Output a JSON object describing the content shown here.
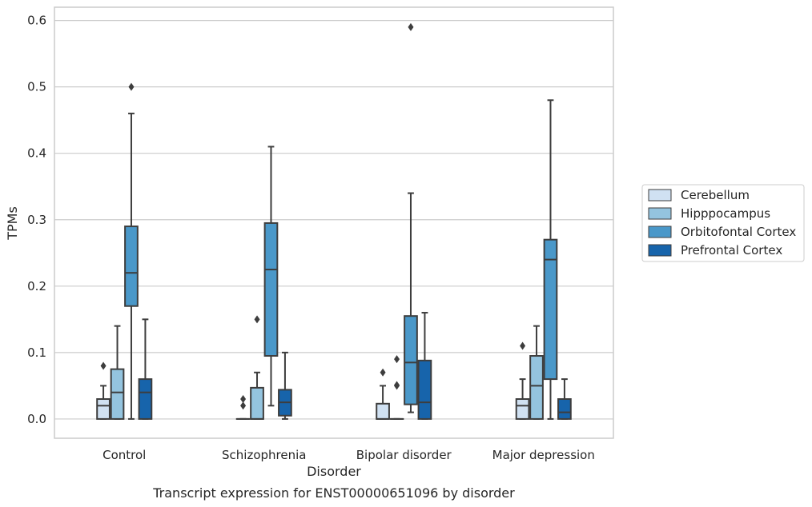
{
  "chart_data": {
    "type": "box",
    "xlabel": "Disorder",
    "ylabel": "TPMs",
    "caption": "Transcript expression for ENST00000651096 by disorder",
    "ylim": [
      -0.029,
      0.62
    ],
    "yticks": [
      "0.0",
      "0.1",
      "0.2",
      "0.3",
      "0.4",
      "0.5",
      "0.6"
    ],
    "grid": "horizontal",
    "legend_position": "right",
    "categories": [
      "Control",
      "Schizophrenia",
      "Bipolar disorder",
      "Major depression"
    ],
    "series": [
      {
        "name": "Cerebellum",
        "color": "#d0e1f2",
        "boxes": [
          {
            "whisker_low": 0.0,
            "q1": 0.0,
            "median": 0.02,
            "q3": 0.03,
            "whisker_high": 0.05,
            "outliers": [
              0.08
            ]
          },
          {
            "whisker_low": 0.0,
            "q1": 0.0,
            "median": 0.0,
            "q3": 0.0,
            "whisker_high": 0.0,
            "outliers": [
              0.02,
              0.03
            ]
          },
          {
            "whisker_low": 0.0,
            "q1": 0.0,
            "median": 0.0,
            "q3": 0.023,
            "whisker_high": 0.05,
            "outliers": [
              0.07
            ]
          },
          {
            "whisker_low": 0.0,
            "q1": 0.0,
            "median": 0.02,
            "q3": 0.03,
            "whisker_high": 0.06,
            "outliers": [
              0.11
            ]
          }
        ]
      },
      {
        "name": "Hipppocampus",
        "color": "#94c4df",
        "boxes": [
          {
            "whisker_low": 0.0,
            "q1": 0.0,
            "median": 0.04,
            "q3": 0.075,
            "whisker_high": 0.14,
            "outliers": []
          },
          {
            "whisker_low": 0.0,
            "q1": 0.0,
            "median": 0.0,
            "q3": 0.047,
            "whisker_high": 0.07,
            "outliers": [
              0.15
            ]
          },
          {
            "whisker_low": 0.0,
            "q1": 0.0,
            "median": 0.0,
            "q3": 0.0,
            "whisker_high": 0.0,
            "outliers": [
              0.05,
              0.051,
              0.09
            ]
          },
          {
            "whisker_low": 0.0,
            "q1": 0.0,
            "median": 0.05,
            "q3": 0.095,
            "whisker_high": 0.14,
            "outliers": []
          }
        ]
      },
      {
        "name": "Orbitofontal Cortex",
        "color": "#4a98c9",
        "boxes": [
          {
            "whisker_low": 0.0,
            "q1": 0.17,
            "median": 0.22,
            "q3": 0.29,
            "whisker_high": 0.46,
            "outliers": [
              0.5
            ]
          },
          {
            "whisker_low": 0.02,
            "q1": 0.095,
            "median": 0.225,
            "q3": 0.295,
            "whisker_high": 0.41,
            "outliers": []
          },
          {
            "whisker_low": 0.01,
            "q1": 0.022,
            "median": 0.085,
            "q3": 0.155,
            "whisker_high": 0.34,
            "outliers": [
              0.59
            ]
          },
          {
            "whisker_low": 0.0,
            "q1": 0.06,
            "median": 0.24,
            "q3": 0.27,
            "whisker_high": 0.48,
            "outliers": []
          }
        ]
      },
      {
        "name": "Prefrontal Cortex",
        "color": "#1764ab",
        "boxes": [
          {
            "whisker_low": 0.0,
            "q1": 0.0,
            "median": 0.04,
            "q3": 0.06,
            "whisker_high": 0.15,
            "outliers": []
          },
          {
            "whisker_low": 0.0,
            "q1": 0.005,
            "median": 0.025,
            "q3": 0.044,
            "whisker_high": 0.1,
            "outliers": []
          },
          {
            "whisker_low": 0.0,
            "q1": 0.0,
            "median": 0.025,
            "q3": 0.088,
            "whisker_high": 0.16,
            "outliers": []
          },
          {
            "whisker_low": 0.0,
            "q1": 0.0,
            "median": 0.01,
            "q3": 0.03,
            "whisker_high": 0.06,
            "outliers": []
          }
        ]
      }
    ]
  }
}
